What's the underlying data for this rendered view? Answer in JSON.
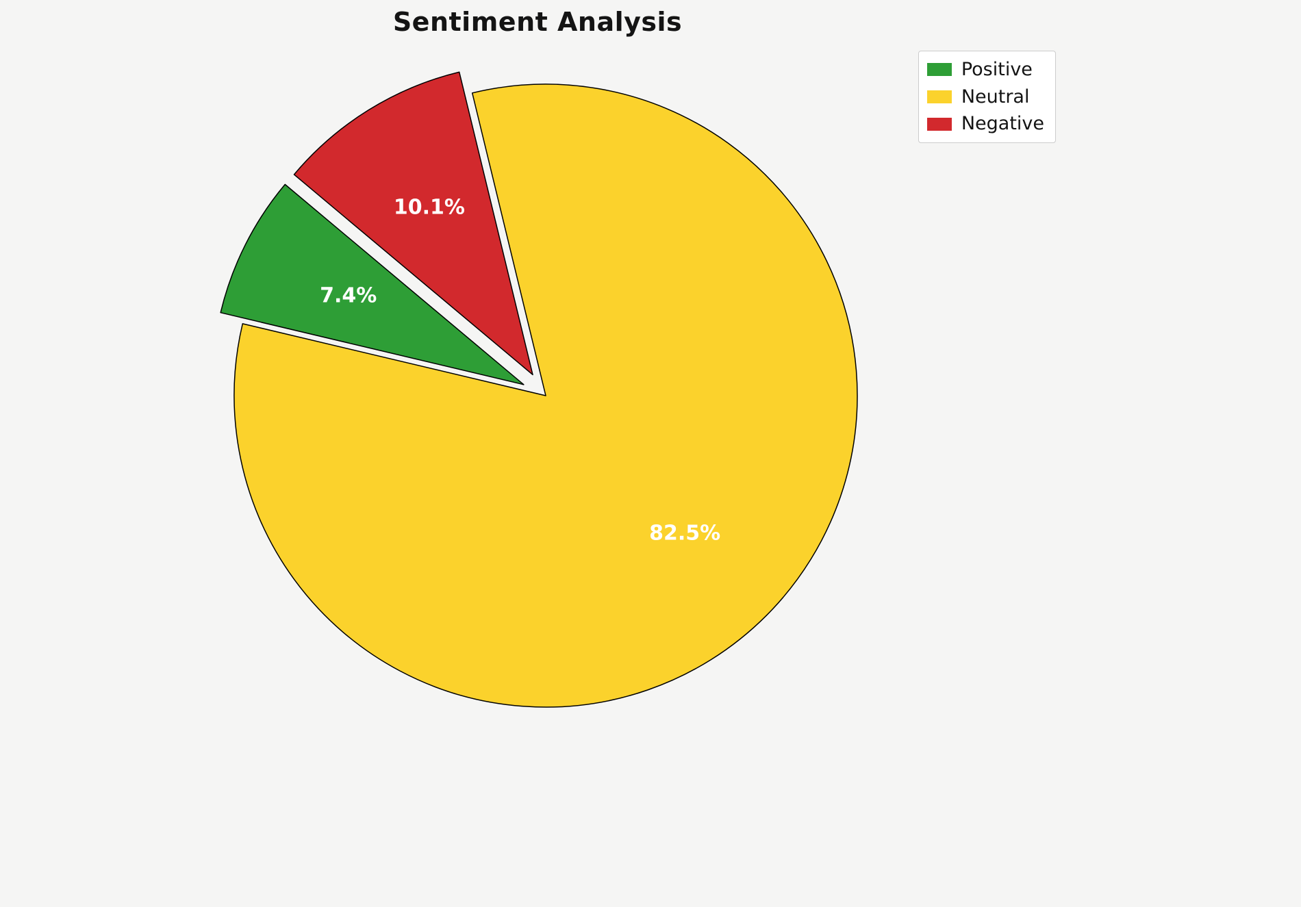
{
  "title": "Sentiment Analysis",
  "background_color": "#f5f5f4",
  "chart_data": {
    "type": "pie",
    "title": "Sentiment Analysis",
    "categories": [
      "Positive",
      "Neutral",
      "Negative"
    ],
    "values": [
      7.4,
      82.5,
      10.1
    ],
    "slice_labels": [
      "7.4%",
      "82.5%",
      "10.1%"
    ],
    "colors": [
      "#2E9E36",
      "#FBD22C",
      "#D2292D"
    ],
    "explode": [
      0.08,
      0,
      0.08
    ],
    "start_angle": 140,
    "direction": "counterclockwise",
    "edge_color": "#000000",
    "edge_width": 1.5,
    "label_color": "#ffffff",
    "legend": {
      "position": "upper right",
      "entries": [
        "Positive",
        "Neutral",
        "Negative"
      ]
    }
  }
}
